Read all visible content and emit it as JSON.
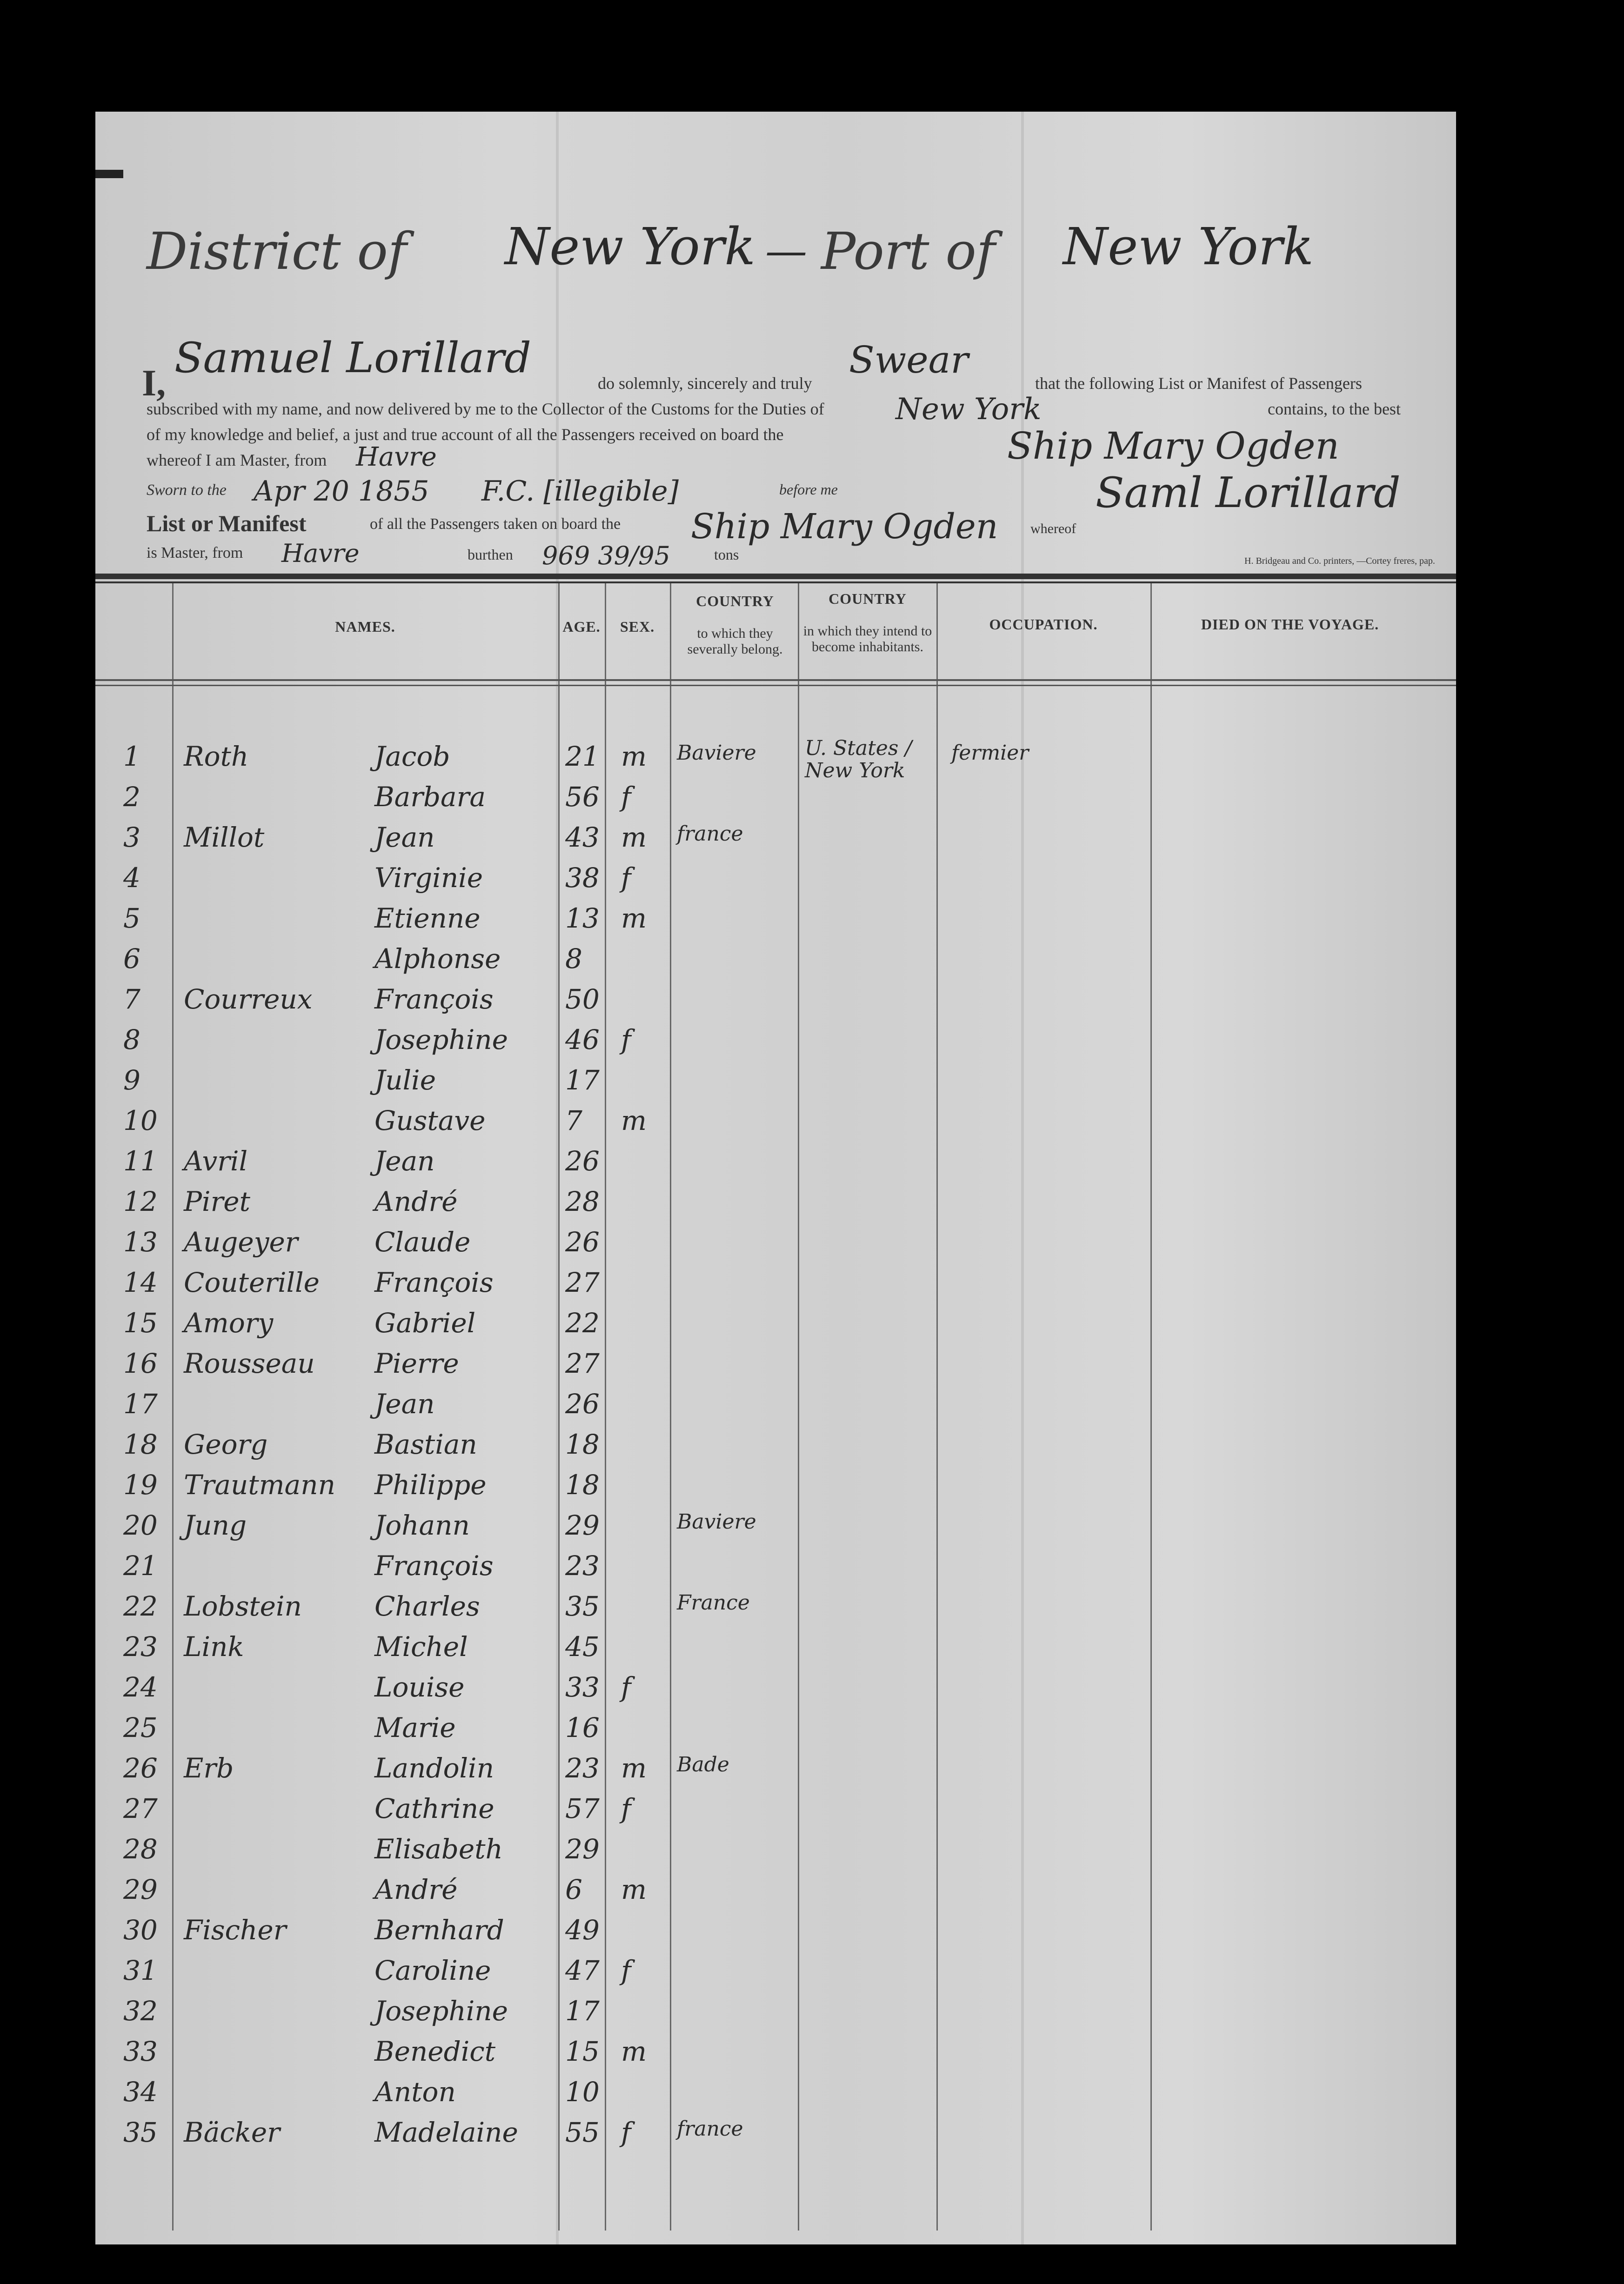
{
  "header": {
    "district_label": "District of",
    "district_value": "New York",
    "port_label": "Port of",
    "port_value": "New York"
  },
  "oath": {
    "prefix": "I,",
    "master_name": "Samuel Lorillard",
    "t1": "do solemnly, sincerely and truly",
    "swear_word": "Swear",
    "t2": "that the following List or Manifest of Passengers",
    "t3": "subscribed with my name, and now delivered by me to the Collector of the Customs for the Duties of",
    "district_duties": "New York",
    "t4": "contains, to the best",
    "t5": "of my knowledge and belief, a just and true account of all the Passengers received on board the",
    "ship_name": "Ship Mary Ogden",
    "t6": "whereof I am Master, from",
    "from_port": "Havre",
    "sworn_label": "Sworn to the",
    "sworn_date": "Apr 20 1855",
    "before_me_label": "before me",
    "official_signature": "F.C. [illegible]",
    "master_signature": "Saml Lorillard"
  },
  "manifest": {
    "title": "List or Manifest",
    "t1": "of all the Passengers taken on board the",
    "ship_name": "Ship Mary Ogden",
    "whereof_label": "whereof",
    "t2": "is Master, from",
    "from_port": "Havre",
    "burthen_label": "burthen",
    "burthen_value": "969 39/95",
    "tons_label": "tons",
    "printer": "H. Bridgeau and Co. printers, —Cortey freres, pap."
  },
  "columns": {
    "names": "NAMES.",
    "age": "AGE.",
    "sex": "SEX.",
    "country_from_title": "COUNTRY",
    "country_from_sub": "to which they severally belong.",
    "country_to_title": "COUNTRY",
    "country_to_sub": "in which they intend to become inhabitants.",
    "occupation": "OCCUPATION.",
    "died": "DIED ON THE VOYAGE."
  },
  "passengers": [
    {
      "no": "1",
      "surname": "Roth",
      "given": "Jacob",
      "age": "21",
      "sex": "m",
      "country": "Baviere",
      "destination": "U. States / New York",
      "occupation": "fermier"
    },
    {
      "no": "2",
      "surname": "",
      "given": "Barbara",
      "age": "56",
      "sex": "f",
      "country": "",
      "destination": "",
      "occupation": ""
    },
    {
      "no": "3",
      "surname": "Millot",
      "given": "Jean",
      "age": "43",
      "sex": "m",
      "country": "france",
      "destination": "",
      "occupation": ""
    },
    {
      "no": "4",
      "surname": "",
      "given": "Virginie",
      "age": "38",
      "sex": "f",
      "country": "",
      "destination": "",
      "occupation": ""
    },
    {
      "no": "5",
      "surname": "",
      "given": "Etienne",
      "age": "13",
      "sex": "m",
      "country": "",
      "destination": "",
      "occupation": ""
    },
    {
      "no": "6",
      "surname": "",
      "given": "Alphonse",
      "age": "8",
      "sex": "",
      "country": "",
      "destination": "",
      "occupation": ""
    },
    {
      "no": "7",
      "surname": "Courreux",
      "given": "François",
      "age": "50",
      "sex": "",
      "country": "",
      "destination": "",
      "occupation": ""
    },
    {
      "no": "8",
      "surname": "",
      "given": "Josephine",
      "age": "46",
      "sex": "f",
      "country": "",
      "destination": "",
      "occupation": ""
    },
    {
      "no": "9",
      "surname": "",
      "given": "Julie",
      "age": "17",
      "sex": "",
      "country": "",
      "destination": "",
      "occupation": ""
    },
    {
      "no": "10",
      "surname": "",
      "given": "Gustave",
      "age": "7",
      "sex": "m",
      "country": "",
      "destination": "",
      "occupation": ""
    },
    {
      "no": "11",
      "surname": "Avril",
      "given": "Jean",
      "age": "26",
      "sex": "",
      "country": "",
      "destination": "",
      "occupation": ""
    },
    {
      "no": "12",
      "surname": "Piret",
      "given": "André",
      "age": "28",
      "sex": "",
      "country": "",
      "destination": "",
      "occupation": ""
    },
    {
      "no": "13",
      "surname": "Augeyer",
      "given": "Claude",
      "age": "26",
      "sex": "",
      "country": "",
      "destination": "",
      "occupation": ""
    },
    {
      "no": "14",
      "surname": "Couterille",
      "given": "François",
      "age": "27",
      "sex": "",
      "country": "",
      "destination": "",
      "occupation": ""
    },
    {
      "no": "15",
      "surname": "Amory",
      "given": "Gabriel",
      "age": "22",
      "sex": "",
      "country": "",
      "destination": "",
      "occupation": ""
    },
    {
      "no": "16",
      "surname": "Rousseau",
      "given": "Pierre",
      "age": "27",
      "sex": "",
      "country": "",
      "destination": "",
      "occupation": ""
    },
    {
      "no": "17",
      "surname": "",
      "given": "Jean",
      "age": "26",
      "sex": "",
      "country": "",
      "destination": "",
      "occupation": ""
    },
    {
      "no": "18",
      "surname": "Georg",
      "given": "Bastian",
      "age": "18",
      "sex": "",
      "country": "",
      "destination": "",
      "occupation": ""
    },
    {
      "no": "19",
      "surname": "Trautmann",
      "given": "Philippe",
      "age": "18",
      "sex": "",
      "country": "",
      "destination": "",
      "occupation": ""
    },
    {
      "no": "20",
      "surname": "Jung",
      "given": "Johann",
      "age": "29",
      "sex": "",
      "country": "Baviere",
      "destination": "",
      "occupation": ""
    },
    {
      "no": "21",
      "surname": "",
      "given": "François",
      "age": "23",
      "sex": "",
      "country": "",
      "destination": "",
      "occupation": ""
    },
    {
      "no": "22",
      "surname": "Lobstein",
      "given": "Charles",
      "age": "35",
      "sex": "",
      "country": "France",
      "destination": "",
      "occupation": ""
    },
    {
      "no": "23",
      "surname": "Link",
      "given": "Michel",
      "age": "45",
      "sex": "",
      "country": "",
      "destination": "",
      "occupation": ""
    },
    {
      "no": "24",
      "surname": "",
      "given": "Louise",
      "age": "33",
      "sex": "f",
      "country": "",
      "destination": "",
      "occupation": ""
    },
    {
      "no": "25",
      "surname": "",
      "given": "Marie",
      "age": "16",
      "sex": "",
      "country": "",
      "destination": "",
      "occupation": ""
    },
    {
      "no": "26",
      "surname": "Erb",
      "given": "Landolin",
      "age": "23",
      "sex": "m",
      "country": "Bade",
      "destination": "",
      "occupation": ""
    },
    {
      "no": "27",
      "surname": "",
      "given": "Cathrine",
      "age": "57",
      "sex": "f",
      "country": "",
      "destination": "",
      "occupation": ""
    },
    {
      "no": "28",
      "surname": "",
      "given": "Elisabeth",
      "age": "29",
      "sex": "",
      "country": "",
      "destination": "",
      "occupation": ""
    },
    {
      "no": "29",
      "surname": "",
      "given": "André",
      "age": "6",
      "sex": "m",
      "country": "",
      "destination": "",
      "occupation": ""
    },
    {
      "no": "30",
      "surname": "Fischer",
      "given": "Bernhard",
      "age": "49",
      "sex": "",
      "country": "",
      "destination": "",
      "occupation": ""
    },
    {
      "no": "31",
      "surname": "",
      "given": "Caroline",
      "age": "47",
      "sex": "f",
      "country": "",
      "destination": "",
      "occupation": ""
    },
    {
      "no": "32",
      "surname": "",
      "given": "Josephine",
      "age": "17",
      "sex": "",
      "country": "",
      "destination": "",
      "occupation": ""
    },
    {
      "no": "33",
      "surname": "",
      "given": "Benedict",
      "age": "15",
      "sex": "m",
      "country": "",
      "destination": "",
      "occupation": ""
    },
    {
      "no": "34",
      "surname": "",
      "given": "Anton",
      "age": "10",
      "sex": "",
      "country": "",
      "destination": "",
      "occupation": ""
    },
    {
      "no": "35",
      "surname": "Bäcker",
      "given": "Madelaine",
      "age": "55",
      "sex": "f",
      "country": "france",
      "destination": "",
      "occupation": ""
    }
  ],
  "colors": {
    "paper": "#d2d2d2",
    "ink": "#2a2a2a",
    "background": "#000000"
  }
}
